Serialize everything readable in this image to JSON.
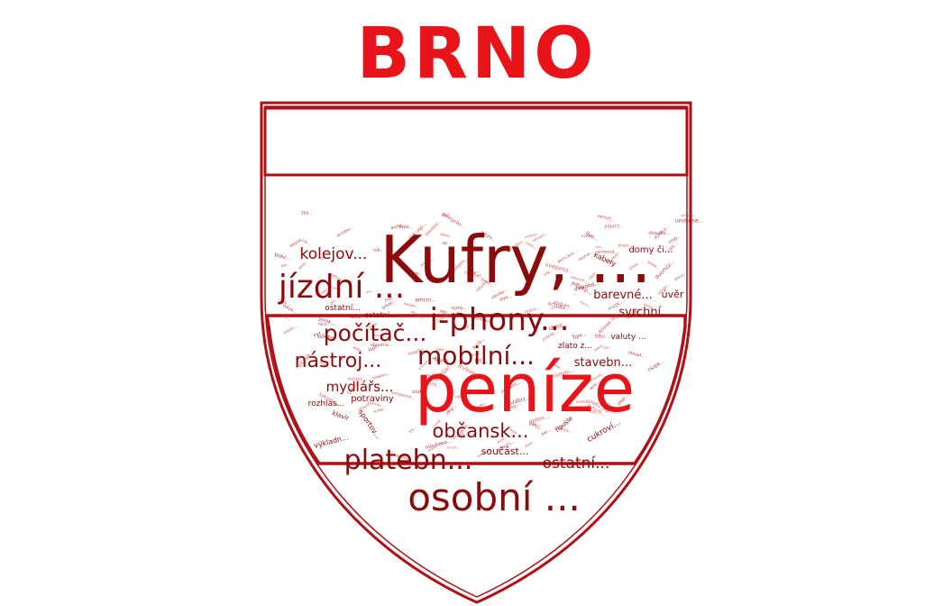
{
  "title": "BRNO",
  "colors": {
    "title": "#e8141a",
    "shield_outline": "#b00f16",
    "word_dark": "#8b0a0a",
    "word_mid": "#a01515",
    "word_bright": "#e8141a"
  },
  "words": [
    {
      "text": "peníze",
      "color": "bright"
    },
    {
      "text": "Kufry, ...",
      "color": "dark"
    },
    {
      "text": "osobní ...",
      "color": "dark"
    },
    {
      "text": "i-phony...",
      "color": "dark"
    },
    {
      "text": "jízdní ...",
      "color": "dark"
    },
    {
      "text": "mobilní...",
      "color": "dark"
    },
    {
      "text": "platebn...",
      "color": "dark"
    },
    {
      "text": "počítač...",
      "color": "dark"
    },
    {
      "text": "nástroj...",
      "color": "dark"
    },
    {
      "text": "občansk...",
      "color": "dark"
    },
    {
      "text": "kolejov...",
      "color": "dark"
    },
    {
      "text": "ostatní...",
      "color": "dark"
    },
    {
      "text": "mydlářs...",
      "color": "dark"
    },
    {
      "text": "barevné...",
      "color": "dark"
    },
    {
      "text": "stavebn...",
      "color": "dark"
    },
    {
      "text": "domy či...",
      "color": "dark"
    },
    {
      "text": "úvěr",
      "color": "dark"
    },
    {
      "text": "svrchní...",
      "color": "dark"
    },
    {
      "text": "potraviny",
      "color": "dark"
    },
    {
      "text": "součást...",
      "color": "dark"
    },
    {
      "text": "rozhlas...",
      "color": "dark"
    },
    {
      "text": "zlato z...",
      "color": "dark"
    },
    {
      "text": "valuty ...",
      "color": "dark"
    },
    {
      "text": "ostatní...",
      "color": "dark"
    },
    {
      "text": "ostatní...",
      "color": "dark"
    },
    {
      "text": "cukroví...",
      "color": "dark"
    },
    {
      "text": "výkladn...",
      "color": "dark"
    },
    {
      "text": "sportov...",
      "color": "dark"
    },
    {
      "text": "kabely",
      "color": "dark"
    },
    {
      "text": "klavír",
      "color": "dark"
    },
    {
      "text": "housle",
      "color": "dark"
    }
  ]
}
